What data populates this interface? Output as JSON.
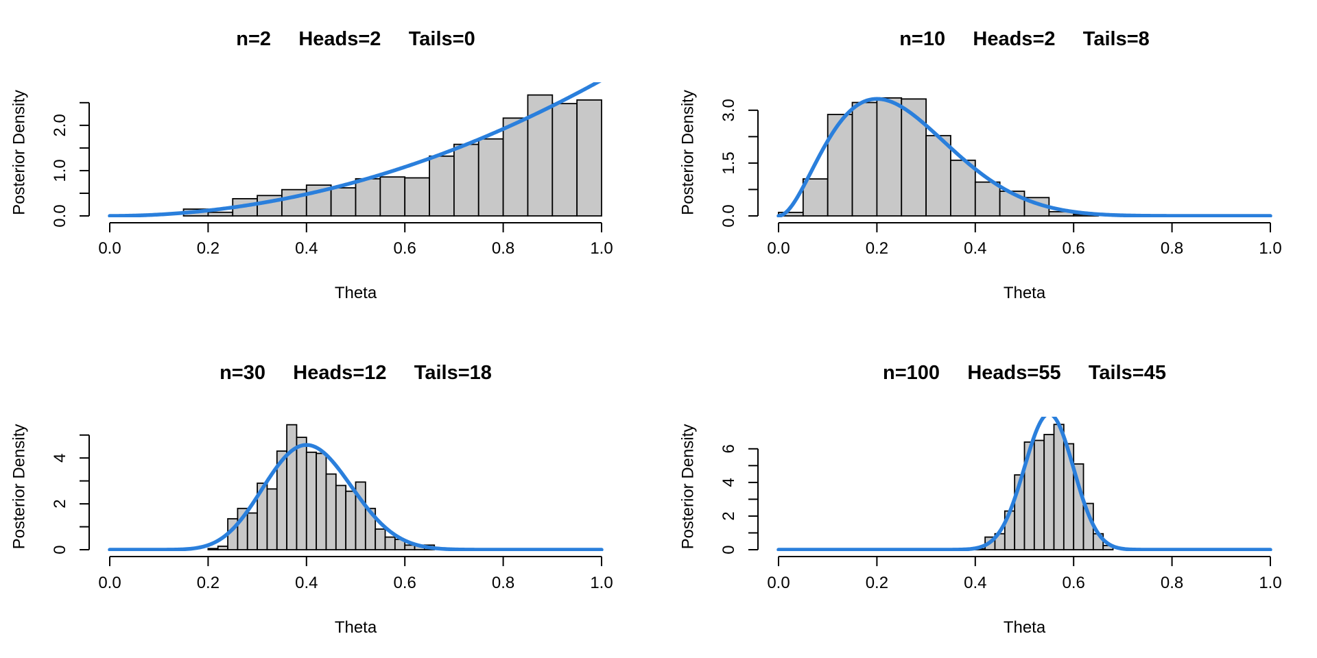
{
  "chart_data": [
    {
      "type": "bar",
      "title": "n=2     Heads=2     Tails=0",
      "xlabel": "Theta",
      "ylabel": "Posterior Density",
      "xlim": [
        0,
        1
      ],
      "ylim": [
        0,
        2.8
      ],
      "x_ticks": [
        "0.0",
        "0.2",
        "0.4",
        "0.6",
        "0.8",
        "1.0"
      ],
      "y_ticks": [
        "0.0",
        "1.0",
        "2.0"
      ],
      "y_tick_values": [
        0,
        1,
        2
      ],
      "y_axis_top": 2.5,
      "bin_width": 0.05,
      "bins_start": [
        0.15,
        0.2,
        0.25,
        0.3,
        0.35,
        0.4,
        0.45,
        0.5,
        0.55,
        0.6,
        0.65,
        0.7,
        0.75,
        0.8,
        0.85,
        0.9,
        0.95
      ],
      "values": [
        0.15,
        0.08,
        0.38,
        0.45,
        0.58,
        0.68,
        0.62,
        0.82,
        0.86,
        0.84,
        1.32,
        1.58,
        1.7,
        2.16,
        2.67,
        2.48,
        2.56
      ],
      "curve": {
        "name": "",
        "color": "#2a7fdc",
        "alpha": 3,
        "beta": 1
      },
      "bar_color": "#c8c8c8"
    },
    {
      "type": "bar",
      "title": "n=10     Heads=2     Tails=8",
      "xlabel": "Theta",
      "ylabel": "Posterior Density",
      "xlim": [
        0,
        1
      ],
      "ylim": [
        0,
        3.6
      ],
      "x_ticks": [
        "0.0",
        "0.2",
        "0.4",
        "0.6",
        "0.8",
        "1.0"
      ],
      "y_ticks": [
        "0.0",
        "1.5",
        "3.0"
      ],
      "y_tick_values": [
        0,
        1.5,
        3.0
      ],
      "y_axis_top": 3.0,
      "bin_width": 0.05,
      "bins_start": [
        0.0,
        0.05,
        0.1,
        0.15,
        0.2,
        0.25,
        0.3,
        0.35,
        0.4,
        0.45,
        0.5,
        0.55,
        0.6
      ],
      "values": [
        0.1,
        1.05,
        2.88,
        3.22,
        3.35,
        3.32,
        2.28,
        1.58,
        0.96,
        0.7,
        0.52,
        0.12,
        0.04
      ],
      "curve": {
        "name": "",
        "color": "#2a7fdc",
        "alpha": 3,
        "beta": 9
      },
      "bar_color": "#c8c8c8"
    },
    {
      "type": "bar",
      "title": "n=30     Heads=12     Tails=18",
      "xlabel": "Theta",
      "ylabel": "Posterior Density",
      "xlim": [
        0,
        1
      ],
      "ylim": [
        0,
        5.5
      ],
      "x_ticks": [
        "0.0",
        "0.2",
        "0.4",
        "0.6",
        "0.8",
        "1.0"
      ],
      "y_ticks": [
        "0",
        "2",
        "4"
      ],
      "y_tick_values": [
        0,
        2,
        4
      ],
      "y_axis_top": 5,
      "bin_width": 0.02,
      "bins_start": [
        0.2,
        0.22,
        0.24,
        0.26,
        0.28,
        0.3,
        0.32,
        0.34,
        0.36,
        0.38,
        0.4,
        0.42,
        0.44,
        0.46,
        0.48,
        0.5,
        0.52,
        0.54,
        0.56,
        0.58,
        0.6,
        0.62,
        0.64
      ],
      "values": [
        0.05,
        0.15,
        1.35,
        1.8,
        1.6,
        2.9,
        2.65,
        4.3,
        5.45,
        4.9,
        4.25,
        4.2,
        3.3,
        2.8,
        2.55,
        2.95,
        1.8,
        0.9,
        0.55,
        0.45,
        0.2,
        0.2,
        0.2
      ],
      "curve": {
        "name": "",
        "color": "#2a7fdc",
        "alpha": 13,
        "beta": 19
      },
      "bar_color": "#c8c8c8"
    },
    {
      "type": "bar",
      "title": "n=100     Heads=55     Tails=45",
      "xlabel": "Theta",
      "ylabel": "Posterior Density",
      "xlim": [
        0,
        1
      ],
      "ylim": [
        0,
        7.5
      ],
      "x_ticks": [
        "0.0",
        "0.2",
        "0.4",
        "0.6",
        "0.8",
        "1.0"
      ],
      "y_ticks": [
        "0",
        "2",
        "4",
        "6"
      ],
      "y_tick_values": [
        0,
        2,
        4,
        6
      ],
      "y_axis_top": 6,
      "bin_width": 0.02,
      "bins_start": [
        0.4,
        0.42,
        0.44,
        0.46,
        0.48,
        0.5,
        0.52,
        0.54,
        0.56,
        0.58,
        0.6,
        0.62,
        0.64,
        0.66
      ],
      "values": [
        0.05,
        0.75,
        0.95,
        2.3,
        4.45,
        6.4,
        6.5,
        6.85,
        7.45,
        6.3,
        5.1,
        2.75,
        0.95,
        0.25
      ],
      "curve": {
        "name": "",
        "color": "#2a7fdc",
        "alpha": 56,
        "beta": 46
      },
      "bar_color": "#c8c8c8"
    }
  ]
}
